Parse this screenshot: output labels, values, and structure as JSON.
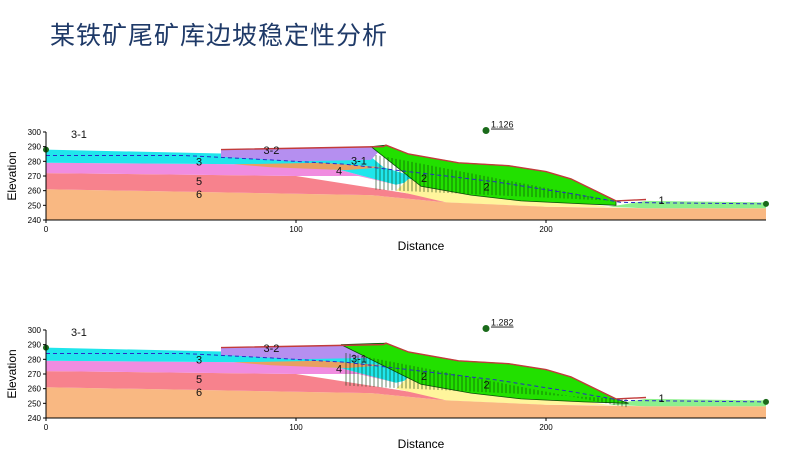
{
  "page": {
    "title": "某铁矿尾矿库边坡稳定性分析"
  },
  "colors": {
    "layer6": "#f9b882",
    "layer5": "#f7828d",
    "layer4": "#f08ce0",
    "layer3": "#1fe6ec",
    "layer32": "#b58ff0",
    "lens31": "#e8a060",
    "layer2": "#fff59c",
    "layer1": "#8df08d",
    "slip": "#22e000",
    "phreatic": "#2a2ac8",
    "marker": "#c23b3b"
  },
  "panels": [
    {
      "id": "top",
      "factor": "1.126",
      "xlabel": "Distance",
      "ylabel": "Elevation",
      "yticks": [
        "300",
        "290",
        "280",
        "270",
        "260",
        "250",
        "240"
      ],
      "xticks": [
        "0",
        "100",
        "200"
      ],
      "labels": {
        "l31a": "3-1",
        "l32": "3-2",
        "l3": "3",
        "l31b": "3-1",
        "l4": "4",
        "l5": "5",
        "l6": "6",
        "l2a": "2",
        "l2b": "2",
        "l1": "1"
      },
      "slip_entry_x": 130,
      "slip_exit_x": 228
    },
    {
      "id": "bottom",
      "factor": "1.282",
      "xlabel": "Distance",
      "ylabel": "Elevation",
      "yticks": [
        "300",
        "290",
        "280",
        "270",
        "260",
        "250",
        "240"
      ],
      "xticks": [
        "0",
        "100",
        "200"
      ],
      "labels": {
        "l31a": "3-1",
        "l32": "3-2",
        "l3": "3",
        "l31b": "3-1",
        "l4": "4",
        "l5": "5",
        "l6": "6",
        "l2a": "2",
        "l2b": "2",
        "l1": "1"
      },
      "slip_entry_x": 118,
      "slip_exit_x": 233
    }
  ]
}
